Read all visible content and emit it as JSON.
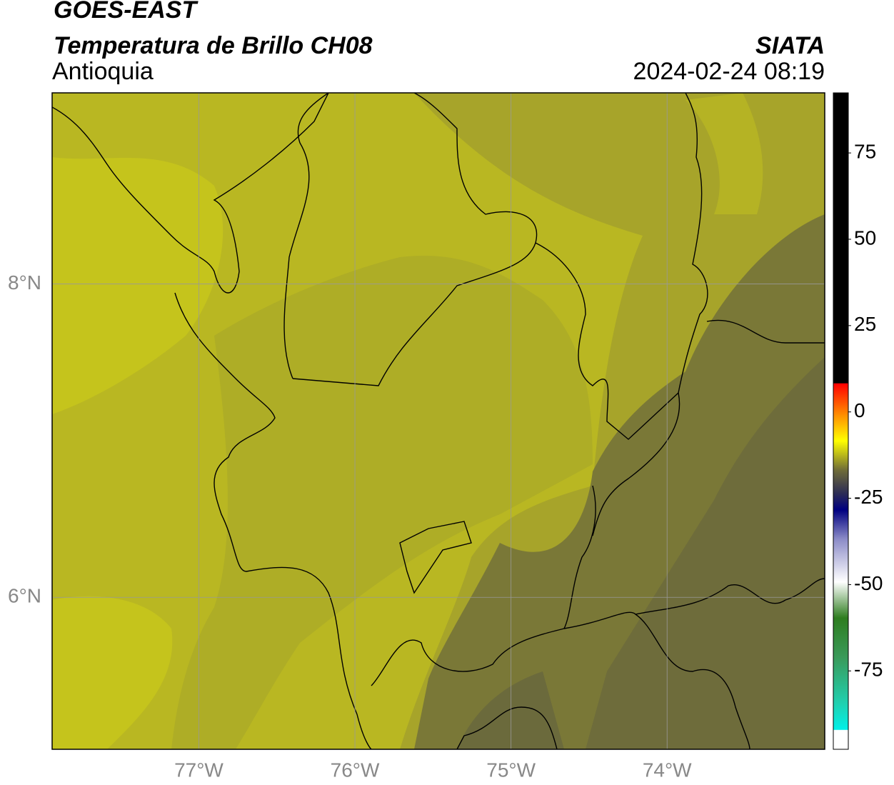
{
  "header": {
    "title": "GOES-EAST",
    "subtitle": "Temperatura de Brillo CH08",
    "region": "Antioquia",
    "source": "SIATA",
    "datetime": "2024-02-24 08:19"
  },
  "map": {
    "lonlim": [
      -77.94,
      -72.99
    ],
    "latlim": [
      5.03,
      9.22
    ],
    "lon_ticks": [
      {
        "value": -77,
        "label": "77°W"
      },
      {
        "value": -76,
        "label": "76°W"
      },
      {
        "value": -75,
        "label": "75°W"
      },
      {
        "value": -74,
        "label": "74°W"
      }
    ],
    "lat_ticks": [
      {
        "value": 8,
        "label": "8°N"
      },
      {
        "value": 6,
        "label": "6°N"
      }
    ]
  },
  "colorbar": {
    "lim": [
      -97.7,
      92.4
    ],
    "ticks": [
      75,
      50,
      25,
      0,
      -25,
      -50,
      -75
    ]
  }
}
